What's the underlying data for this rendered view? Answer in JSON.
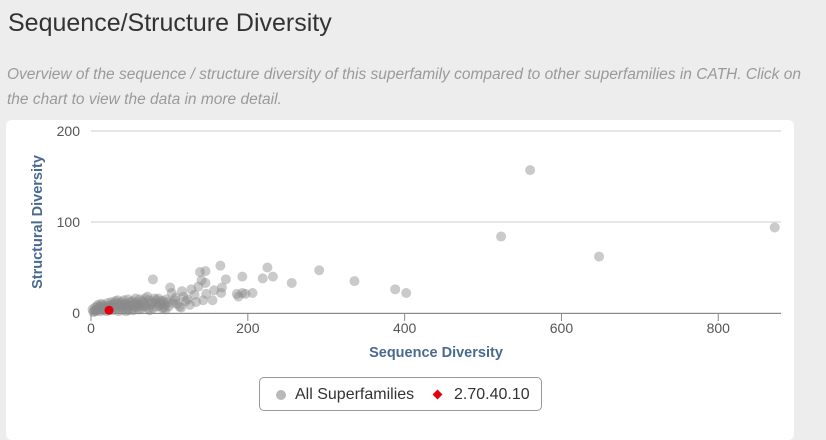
{
  "page": {
    "heading": "Sequence/Structure Diversity",
    "description": "Overview of the sequence / structure diversity of this superfamily compared to other superfamilies in CATH. Click on the chart to view the data in more detail."
  },
  "chart_data": {
    "type": "scatter",
    "xlabel": "Sequence Diversity",
    "ylabel": "Structural Diversity",
    "xlim": [
      0,
      880
    ],
    "ylim": [
      0,
      200
    ],
    "x_ticks": [
      "0",
      "200",
      "400",
      "600",
      "800"
    ],
    "y_ticks": [
      "0",
      "100",
      "200"
    ],
    "grid": "horizontal",
    "legend_position": "bottom-center",
    "colors": {
      "all": "#8a8a8a",
      "highlight": "#e0000f"
    },
    "series": [
      {
        "name": "All Superfamilies",
        "marker": "circle",
        "color": "#8a8a8a",
        "points": [
          [
            872,
            94
          ],
          [
            560,
            157
          ],
          [
            523,
            84
          ],
          [
            648,
            62
          ],
          [
            291,
            47
          ],
          [
            336,
            35
          ],
          [
            388,
            26
          ],
          [
            402,
            22
          ],
          [
            225,
            50
          ],
          [
            232,
            40
          ],
          [
            219,
            38
          ],
          [
            256,
            33
          ],
          [
            165,
            52
          ],
          [
            193,
            40
          ],
          [
            172,
            37
          ],
          [
            146,
            46
          ],
          [
            139,
            45
          ],
          [
            141,
            36
          ],
          [
            146,
            33
          ],
          [
            137,
            29
          ],
          [
            157,
            25
          ],
          [
            147,
            21
          ],
          [
            128,
            26
          ],
          [
            116,
            24
          ],
          [
            167,
            28
          ],
          [
            166,
            22
          ],
          [
            193,
            22
          ],
          [
            188,
            18
          ],
          [
            197,
            21
          ],
          [
            206,
            22
          ],
          [
            186,
            21
          ],
          [
            79,
            37
          ],
          [
            101,
            28
          ],
          [
            103,
            22
          ],
          [
            118,
            18
          ],
          [
            123,
            15
          ],
          [
            107,
            14
          ],
          [
            143,
            14
          ],
          [
            155,
            14
          ],
          [
            134,
            12
          ],
          [
            113,
            7
          ],
          [
            91,
            5
          ],
          [
            79,
            5
          ],
          [
            86,
            16
          ],
          [
            92,
            13
          ],
          [
            72,
            18
          ],
          [
            66,
            13
          ],
          [
            60,
            9
          ],
          [
            55,
            7
          ],
          [
            50,
            12
          ],
          [
            44,
            10
          ],
          [
            38,
            8
          ],
          [
            33,
            11
          ],
          [
            27,
            9
          ],
          [
            22,
            6
          ],
          [
            18,
            8
          ],
          [
            14,
            5
          ],
          [
            10,
            4
          ],
          [
            8,
            7
          ],
          [
            6,
            3
          ],
          [
            4,
            2
          ],
          [
            3,
            1
          ],
          [
            2,
            4
          ],
          [
            12,
            2
          ],
          [
            16,
            3
          ],
          [
            20,
            2
          ],
          [
            24,
            4
          ],
          [
            28,
            3
          ],
          [
            32,
            5
          ],
          [
            36,
            4
          ],
          [
            40,
            6
          ],
          [
            46,
            5
          ],
          [
            52,
            4
          ],
          [
            58,
            6
          ],
          [
            64,
            5
          ],
          [
            70,
            8
          ],
          [
            76,
            9
          ],
          [
            82,
            11
          ],
          [
            88,
            10
          ],
          [
            94,
            9
          ],
          [
            98,
            12
          ],
          [
            26,
            12
          ],
          [
            30,
            7
          ],
          [
            42,
            14
          ],
          [
            48,
            3
          ],
          [
            56,
            10
          ],
          [
            62,
            15
          ],
          [
            68,
            11
          ],
          [
            74,
            14
          ],
          [
            84,
            7
          ],
          [
            96,
            15
          ],
          [
            104,
            11
          ],
          [
            110,
            10
          ],
          [
            35,
            2
          ],
          [
            45,
            2
          ],
          [
            54,
            3
          ],
          [
            9,
            9
          ],
          [
            13,
            10
          ],
          [
            17,
            6
          ],
          [
            21,
            11
          ],
          [
            25,
            6
          ],
          [
            29,
            10
          ],
          [
            34,
            14
          ],
          [
            39,
            12
          ],
          [
            43,
            9
          ],
          [
            49,
            8
          ],
          [
            53,
            13
          ],
          [
            57,
            16
          ],
          [
            61,
            4
          ],
          [
            67,
            7
          ],
          [
            73,
            5
          ],
          [
            78,
            12
          ],
          [
            83,
            14
          ],
          [
            87,
            8
          ],
          [
            93,
            6
          ],
          [
            99,
            7
          ],
          [
            5,
            6
          ],
          [
            7,
            2
          ],
          [
            11,
            7
          ],
          [
            15,
            9
          ],
          [
            19,
            4
          ],
          [
            23,
            8
          ],
          [
            31,
            13
          ],
          [
            37,
            10
          ],
          [
            41,
            3
          ],
          [
            47,
            15
          ],
          [
            51,
            9
          ],
          [
            59,
            12
          ],
          [
            63,
            8
          ],
          [
            69,
            16
          ],
          [
            75,
            3
          ],
          [
            81,
            16
          ],
          [
            89,
            13
          ],
          [
            95,
            4
          ],
          [
            108,
            17
          ],
          [
            115,
            6
          ],
          [
            126,
            9
          ],
          [
            132,
            20
          ],
          [
            121,
            13
          ]
        ]
      },
      {
        "name": "2.70.40.10",
        "marker": "diamond",
        "color": "#e0000f",
        "points": [
          [
            23,
            3
          ]
        ]
      }
    ]
  }
}
